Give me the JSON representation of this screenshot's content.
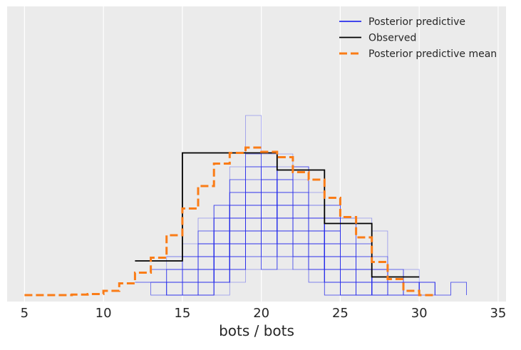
{
  "chart_data": {
    "type": "line",
    "xlabel": "bots / bots",
    "ylabel": "",
    "xlim": [
      3.9,
      35.5
    ],
    "ylim": [
      -0.006,
      0.27
    ],
    "xticks": [
      5,
      10,
      15,
      20,
      25,
      30,
      35
    ],
    "yticks_visible": false,
    "grid": true,
    "background": "#ebebeb",
    "legend_position": "top-right",
    "legend": [
      {
        "label": "Posterior predictive",
        "style": "solid",
        "color": "#2a2eec"
      },
      {
        "label": "Observed",
        "style": "solid",
        "color": "#000000"
      },
      {
        "label": "Posterior predictive mean",
        "style": "dashed",
        "color": "#fa7c17"
      }
    ],
    "colors": {
      "predictive": "#2a2eec",
      "observed": "#000000",
      "mean": "#fa7c17",
      "grid": "#ffffff"
    },
    "predictive_sample_count": 60,
    "observed": {
      "x": [
        12,
        13,
        14,
        15,
        16,
        17,
        18,
        19,
        20,
        21,
        22,
        23,
        24,
        25,
        26,
        27,
        28,
        29,
        30
      ],
      "y": [
        0.032,
        0.032,
        0.032,
        0.133,
        0.133,
        0.133,
        0.133,
        0.133,
        0.133,
        0.117,
        0.117,
        0.117,
        0.067,
        0.067,
        0.067,
        0.017,
        0.017,
        0.017,
        0.017
      ]
    },
    "mean": {
      "x": [
        5,
        6,
        7,
        8,
        9,
        10,
        11,
        12,
        13,
        14,
        15,
        16,
        17,
        18,
        19,
        20,
        21,
        22,
        23,
        24,
        25,
        26,
        27,
        28,
        29,
        30,
        31
      ],
      "y": [
        0.0,
        0.0,
        0.0,
        0.0005,
        0.001,
        0.004,
        0.011,
        0.021,
        0.035,
        0.056,
        0.081,
        0.102,
        0.123,
        0.133,
        0.138,
        0.134,
        0.129,
        0.115,
        0.108,
        0.091,
        0.073,
        0.054,
        0.031,
        0.015,
        0.004,
        0.0,
        0.0
      ]
    }
  }
}
